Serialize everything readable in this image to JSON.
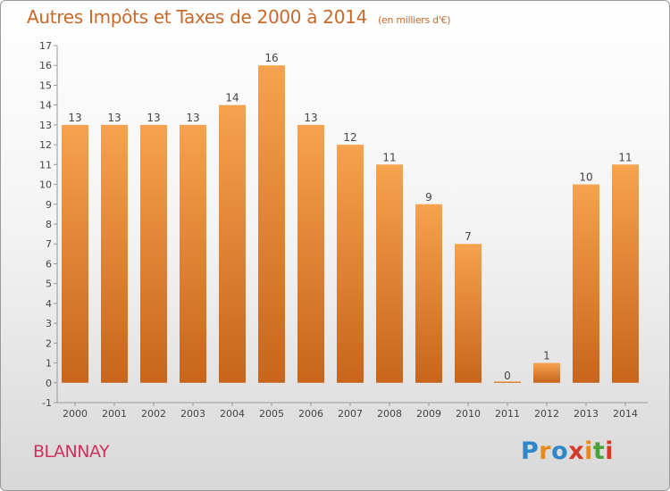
{
  "header": {
    "title": "Autres Impôts et Taxes de 2000 à 2014",
    "unit": "(en milliers d'€)"
  },
  "footer": {
    "location": "BLANNAY",
    "brand_letters": [
      "P",
      "r",
      "o",
      "x",
      "i",
      "t",
      "i"
    ],
    "brand_colors": [
      "#2f86c8",
      "#e98a1c",
      "#2f86c8",
      "#d23a2a",
      "#e98a1c",
      "#4aa23a",
      "#d23a2a"
    ]
  },
  "chart_data": {
    "type": "bar",
    "categories": [
      "2000",
      "2001",
      "2002",
      "2003",
      "2004",
      "2005",
      "2006",
      "2007",
      "2008",
      "2009",
      "2010",
      "2011",
      "2012",
      "2013",
      "2014"
    ],
    "values": [
      13,
      13,
      13,
      13,
      14,
      16,
      13,
      12,
      11,
      9,
      7,
      0,
      1,
      10,
      11
    ],
    "title": "Autres Impôts et Taxes de 2000 à 2014",
    "ylim": [
      -1,
      17
    ],
    "yticks": [
      -1,
      0,
      1,
      2,
      3,
      4,
      5,
      6,
      7,
      8,
      9,
      10,
      11,
      12,
      13,
      14,
      15,
      16,
      17
    ],
    "grid": false,
    "bar_color_light": "#f6a24e",
    "bar_color_dark": "#c8651a"
  }
}
